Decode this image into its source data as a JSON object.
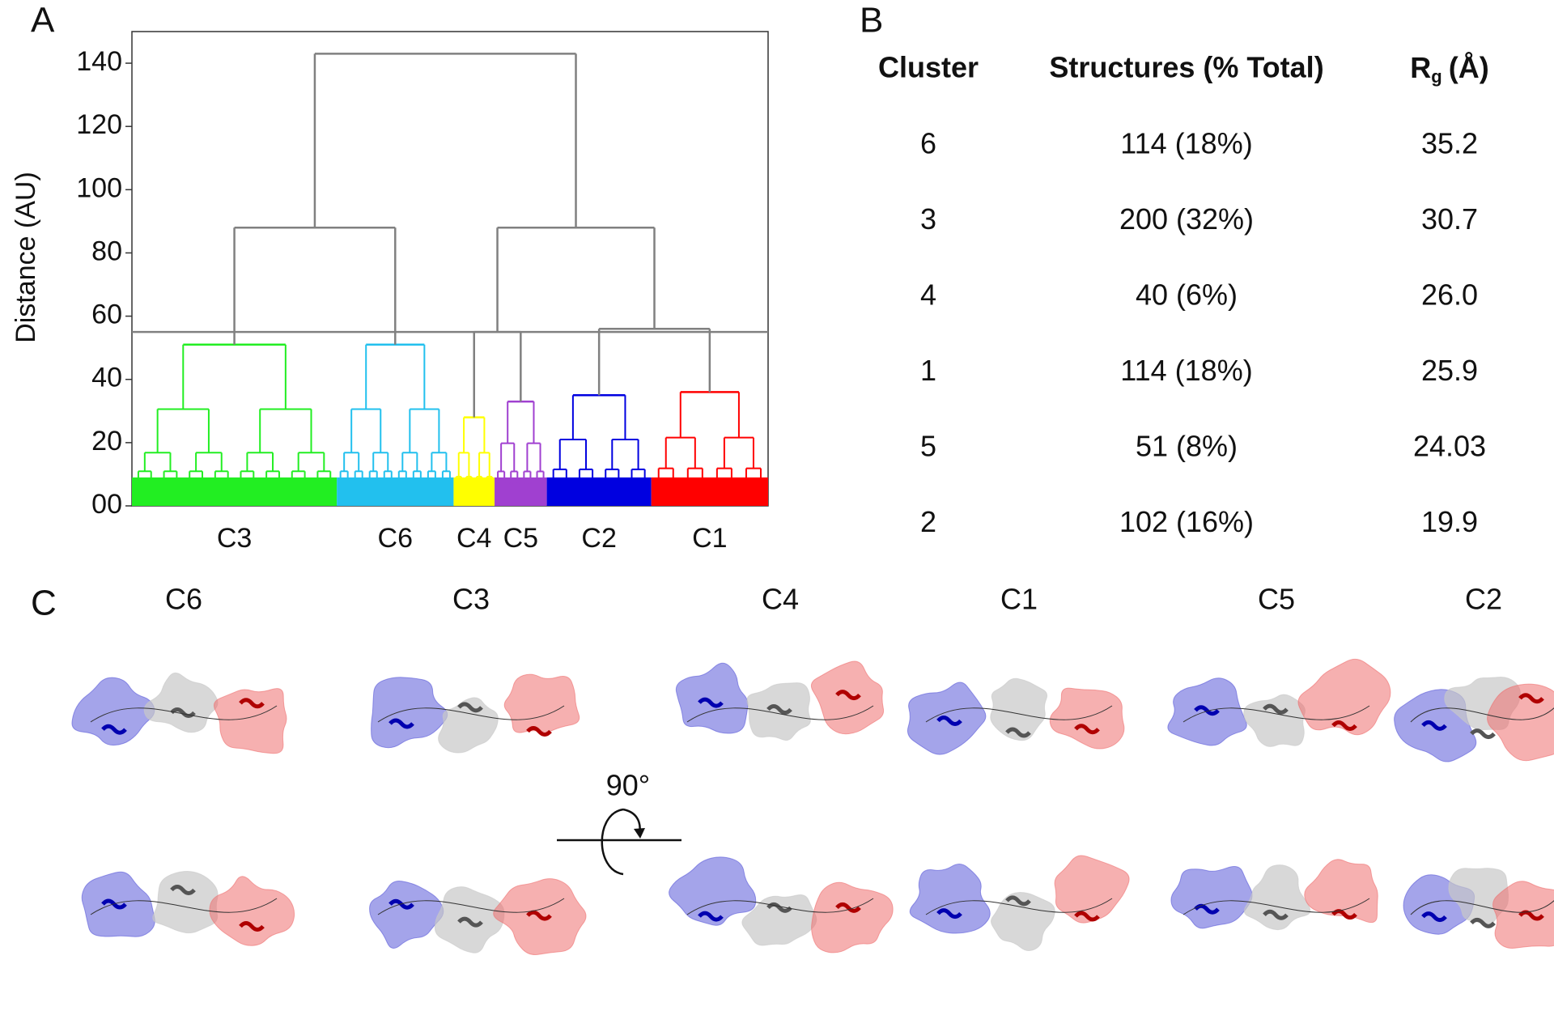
{
  "panel_labels": [
    "A",
    "B",
    "C"
  ],
  "chart_data": {
    "type": "dendrogram",
    "ylabel": "Distance (AU)",
    "ylim": [
      0,
      150
    ],
    "yticks": [
      {
        "value": 0,
        "label": "00"
      },
      20,
      40,
      60,
      80,
      100,
      120,
      140
    ],
    "threshold": 55,
    "link_color": "#808080",
    "clusters": [
      {
        "name": "C3",
        "color": "#22ee22",
        "size": 200,
        "height": 51
      },
      {
        "name": "C6",
        "color": "#22c0ee",
        "size": 114,
        "height": 51
      },
      {
        "name": "C4",
        "color": "#ffff00",
        "size": 40,
        "height": 28
      },
      {
        "name": "C5",
        "color": "#a040d0",
        "size": 51,
        "height": 33
      },
      {
        "name": "C2",
        "color": "#0000e0",
        "size": 102,
        "height": 35
      },
      {
        "name": "C1",
        "color": "#ff0000",
        "size": 114,
        "height": 36
      }
    ],
    "tree": {
      "height": 143,
      "children": [
        {
          "height": 88,
          "children": [
            0,
            1
          ]
        },
        {
          "height": 88,
          "children": [
            {
              "height": 55,
              "children": [
                2,
                3
              ]
            },
            {
              "height": 56,
              "children": [
                4,
                5
              ]
            }
          ]
        }
      ]
    }
  },
  "table": {
    "headers": [
      "Cluster",
      "Structures (% Total)"
    ],
    "rg_header": {
      "symbol": "R",
      "subscript": "g",
      "unit": "(Å)"
    },
    "rows": [
      [
        "6",
        "114 (18%)",
        "35.2"
      ],
      [
        "3",
        "200 (32%)",
        "30.7"
      ],
      [
        "4",
        "40 (6%)",
        "26.0"
      ],
      [
        "1",
        "114 (18%)",
        "25.9"
      ],
      [
        "5",
        "51 (8%)",
        "24.03"
      ],
      [
        "2",
        "102 (16%)",
        "19.9"
      ]
    ]
  },
  "structures": {
    "labels": [
      "C6",
      "C3",
      "C4",
      "C1",
      "C5",
      "C2"
    ],
    "rotation": "90°"
  }
}
